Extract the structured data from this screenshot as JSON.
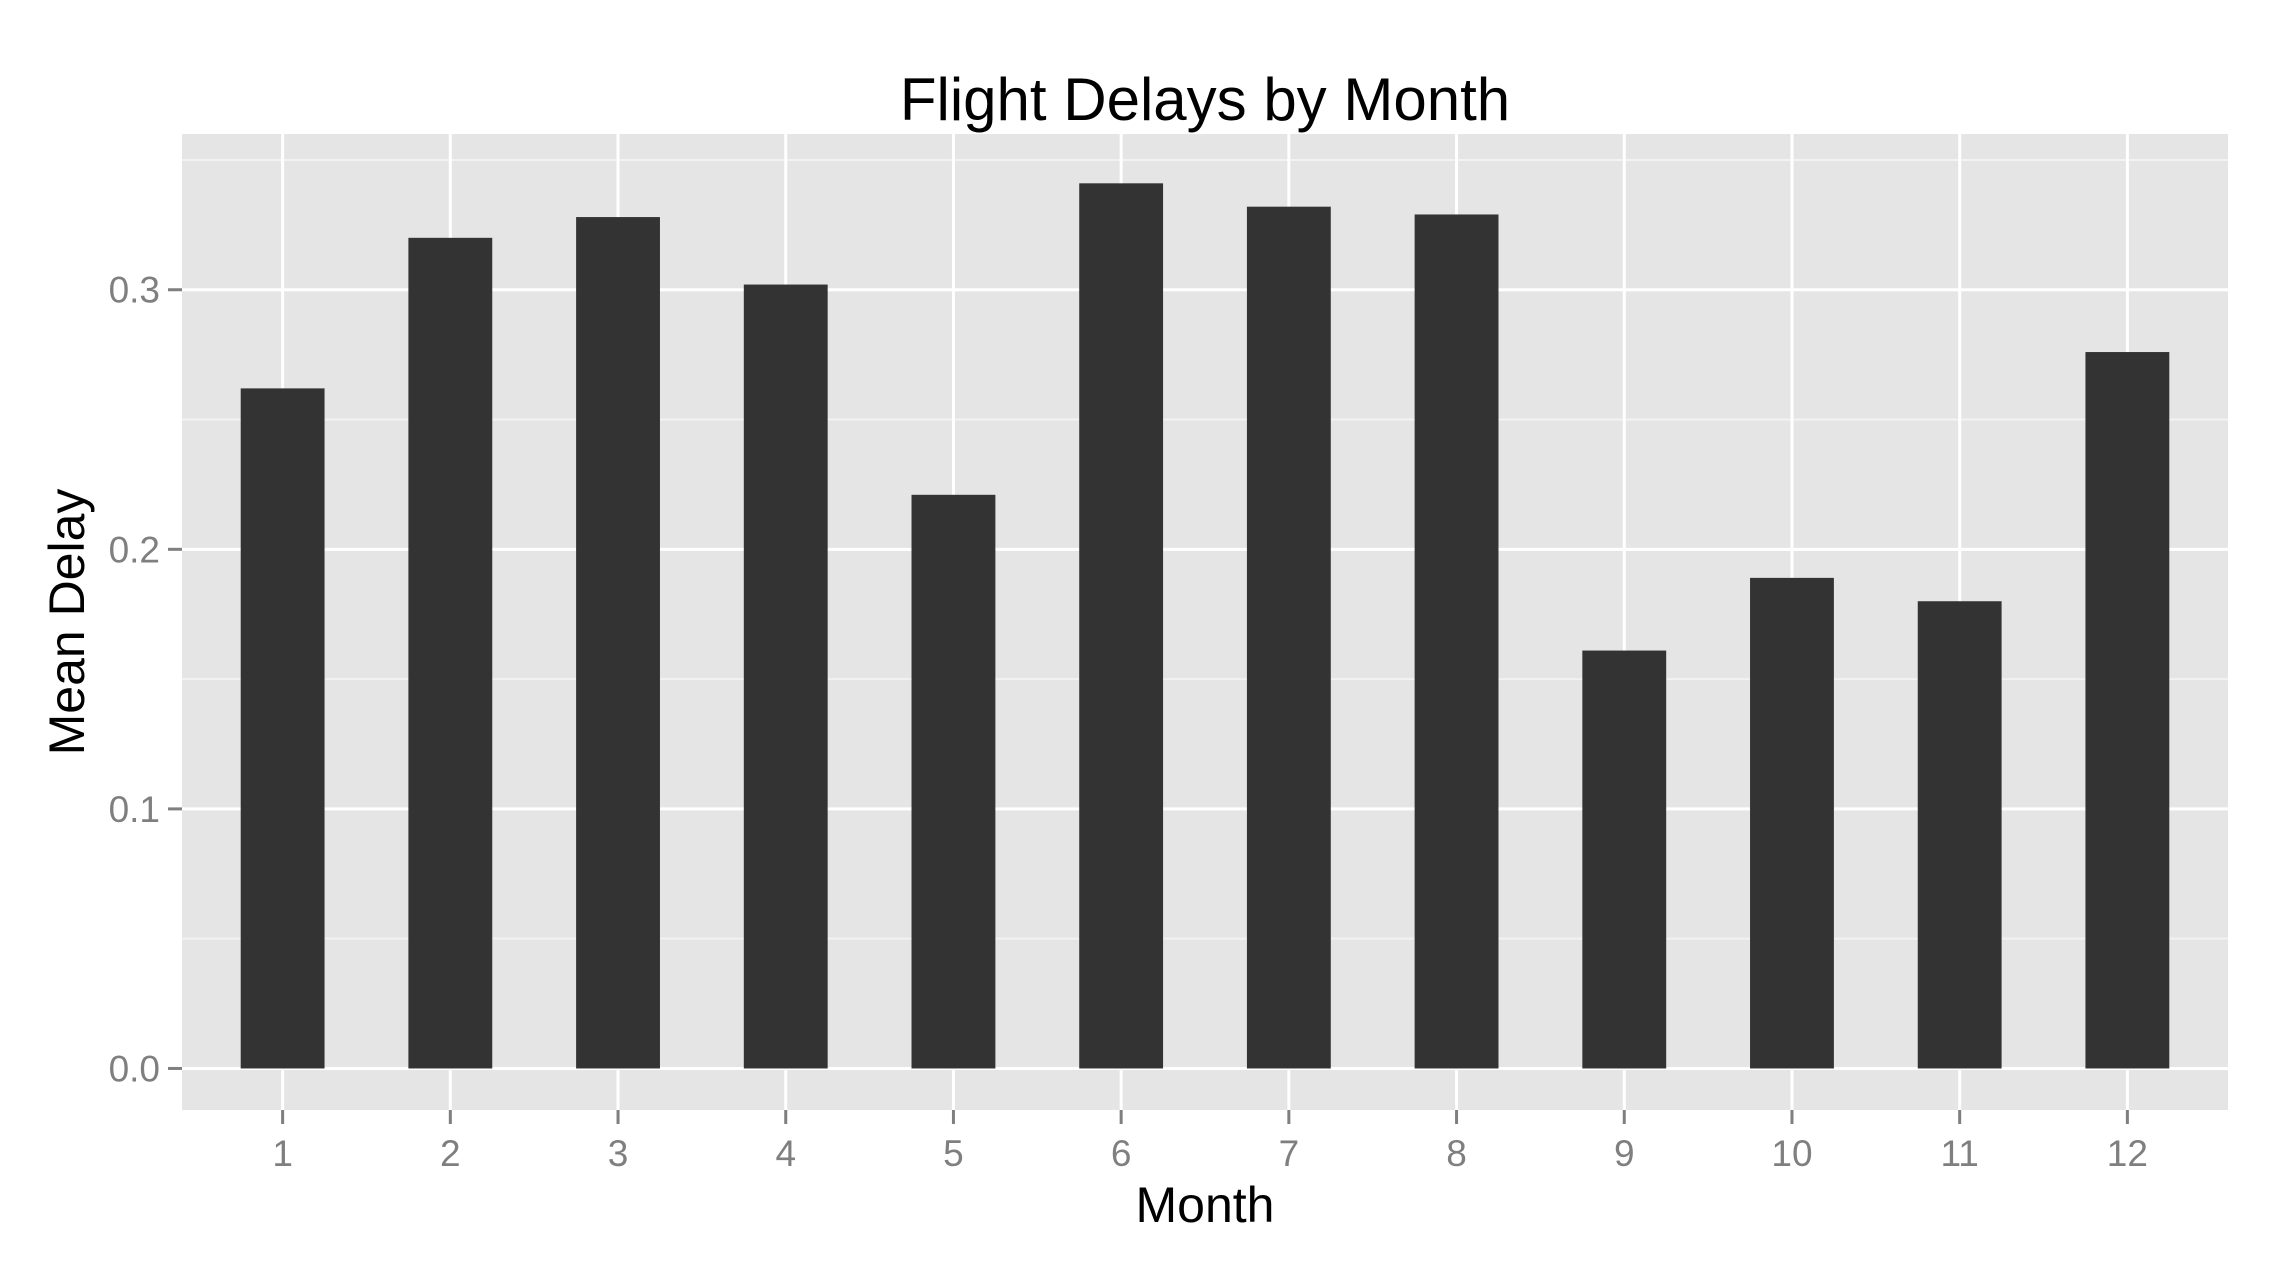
{
  "chart_data": {
    "type": "bar",
    "title": "Flight Delays by Month",
    "xlabel": "Month",
    "ylabel": "Mean Delay",
    "categories": [
      "1",
      "2",
      "3",
      "4",
      "5",
      "6",
      "7",
      "8",
      "9",
      "10",
      "11",
      "12"
    ],
    "values": [
      0.262,
      0.32,
      0.328,
      0.302,
      0.221,
      0.341,
      0.332,
      0.329,
      0.161,
      0.189,
      0.18,
      0.276
    ],
    "ylim": [
      -0.016,
      0.36
    ],
    "yticks": [
      0.0,
      0.1,
      0.2,
      0.3
    ],
    "ytick_labels": [
      "0.0",
      "0.1",
      "0.2",
      "0.3"
    ],
    "grid": true,
    "legend": "none",
    "colors": {
      "bar": "#333333",
      "panel": "#e5e5e5",
      "grid_major": "#ffffff",
      "grid_minor": "#f2f2f2",
      "tick_label": "#7f7f7f",
      "tick_mark": "#7f7f7f"
    }
  }
}
